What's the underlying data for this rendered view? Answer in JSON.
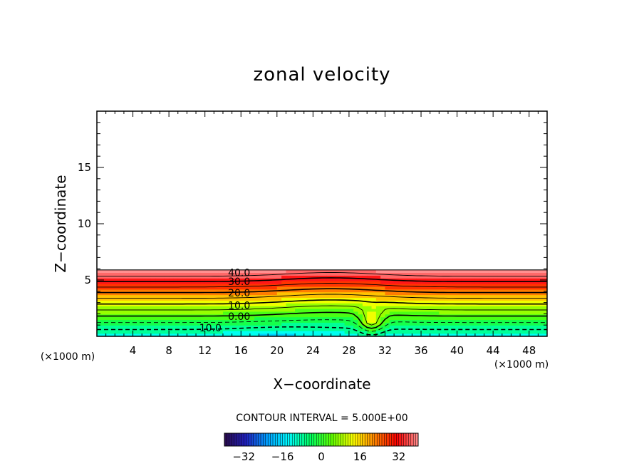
{
  "chart_data": {
    "type": "heatmap",
    "title": "zonal velocity",
    "xlabel": "X−coordinate",
    "ylabel": "Z−coordinate",
    "x_unit": "(×1000 m)",
    "y_unit": "(×1000 m)",
    "xlim": [
      0,
      50
    ],
    "ylim": [
      0,
      20
    ],
    "x_ticks": [
      4,
      8,
      12,
      16,
      20,
      24,
      28,
      32,
      36,
      40,
      44,
      48
    ],
    "x_tick_labels": [
      "4",
      "8",
      "12",
      "16",
      "20",
      "24",
      "28",
      "32",
      "36",
      "40",
      "44",
      "48"
    ],
    "y_ticks": [
      5,
      10,
      15
    ],
    "y_tick_labels": [
      "5",
      "10",
      "15"
    ],
    "field_top_z": 5.9,
    "contour_interval_text": "CONTOUR INTERVAL = 5.000E+00",
    "contour_labels": [
      {
        "text": "40.0",
        "x": 15.8,
        "z": 5.6
      },
      {
        "text": "30.0",
        "x": 15.8,
        "z": 4.8
      },
      {
        "text": "20.0",
        "x": 15.8,
        "z": 3.8
      },
      {
        "text": "10.0",
        "x": 15.8,
        "z": 2.7
      },
      {
        "text": "0.00",
        "x": 15.8,
        "z": 1.7
      },
      {
        "text": "10.0",
        "x": 12.6,
        "z": 0.7
      }
    ],
    "colorbar": {
      "min": -40,
      "max": 40,
      "tick_values": [
        -32,
        -16,
        0,
        16,
        32
      ],
      "tick_labels": [
        "−32",
        "−16",
        "0",
        "16",
        "32"
      ]
    },
    "colormap": [
      "#2a0a4a",
      "#2020c0",
      "#00a0ff",
      "#00ffff",
      "#00ff60",
      "#60ff00",
      "#ffff00",
      "#ff8000",
      "#ff0000",
      "#ff9090"
    ]
  }
}
